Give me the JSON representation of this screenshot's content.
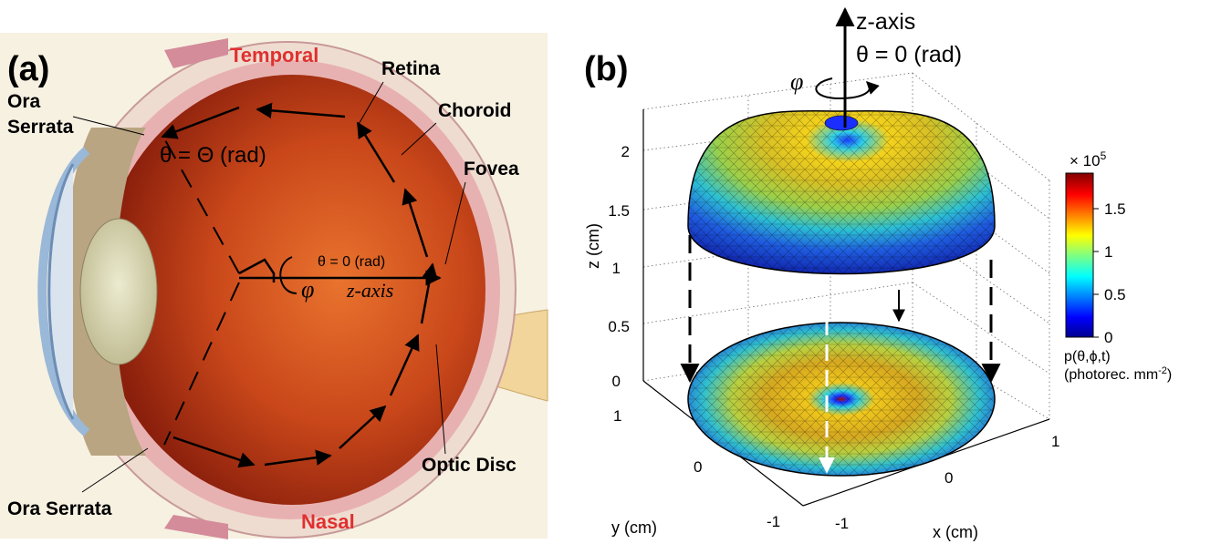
{
  "panel_a": {
    "panel_label": "(a)",
    "labels": {
      "temporal": "Temporal",
      "nasal": "Nasal",
      "retina": "Retina",
      "choroid": "Choroid",
      "fovea": "Fovea",
      "optic_disc": "Optic Disc",
      "ora_serrata_top_1": "Ora",
      "ora_serrata_top_2": "Serrata",
      "ora_serrata_bottom": "Ora Serrata"
    },
    "theta_big": "θ = Θ (rad)",
    "theta_zero": "θ = 0 (rad)",
    "phi": "φ",
    "z_axis": "z-axis",
    "colors": {
      "temporal_nasal": "#e03030",
      "retina_fill": "#c0401a"
    }
  },
  "panel_b": {
    "panel_label": "(b)",
    "z_axis_label": "z-axis",
    "theta_zero": "θ = 0 (rad)",
    "phi": "φ",
    "axis_labels": {
      "x": "x (cm)",
      "y": "y (cm)",
      "z": "z (cm)"
    },
    "z_ticks": [
      "0",
      "0.5",
      "1",
      "1.5",
      "2"
    ],
    "x_ticks": [
      "-1",
      "0",
      "1"
    ],
    "y_ticks": [
      "1",
      "0",
      "-1"
    ],
    "colorbar": {
      "multiplier": "× 10",
      "exponent": "5",
      "ticks": [
        "0",
        "0.5",
        "1",
        "1.5"
      ],
      "title_1": "p(θ,ϕ,t)",
      "title_2": "(photorec. mm",
      "title_2_exp": "-2",
      "title_2_end": ")"
    }
  }
}
